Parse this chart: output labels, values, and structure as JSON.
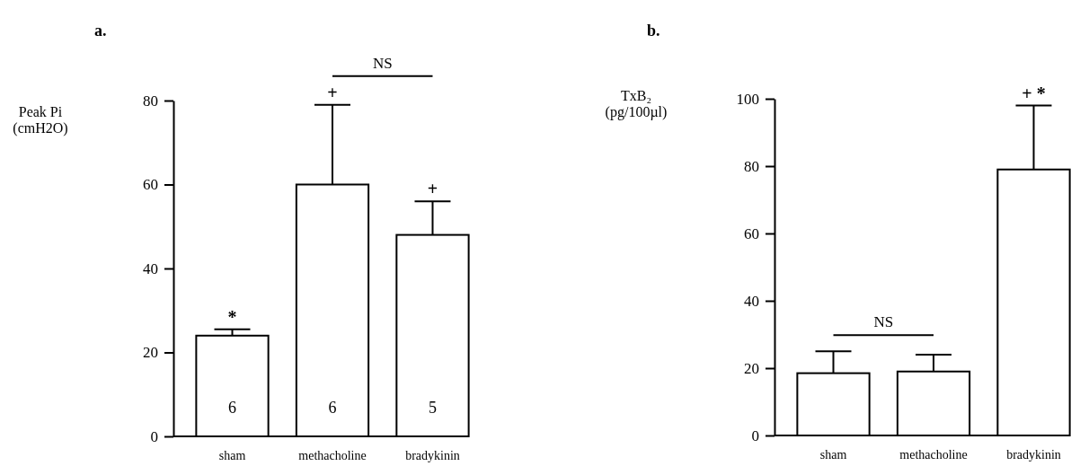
{
  "chart_data": [
    {
      "type": "bar",
      "title": "a.",
      "ylabel": "Peak Pi\n(cmH2O)",
      "categories": [
        "sham",
        "methacholine",
        "bradykinin"
      ],
      "values": [
        24,
        60,
        48
      ],
      "color": "#ffffff",
      "errors": [
        [
          24,
          25.5
        ],
        [
          60,
          79
        ],
        [
          48,
          56
        ]
      ],
      "ylim": [
        0,
        80
      ],
      "yticks": [
        0,
        20,
        40,
        60,
        80
      ],
      "grid": false,
      "annotations": [
        "*",
        "+",
        "+",
        "NS",
        "6",
        "6",
        "5"
      ]
    },
    {
      "type": "bar",
      "title": "b.",
      "ylabel": "TxB₂\n(pg/100µl)",
      "categories": [
        "sham",
        "methacholine",
        "bradykinin"
      ],
      "values": [
        18.5,
        19,
        79
      ],
      "color": "#ffffff",
      "errors": [
        [
          18.5,
          25
        ],
        [
          19,
          24
        ],
        [
          79,
          98
        ]
      ],
      "ylim": [
        0,
        100
      ],
      "yticks": [
        0,
        20,
        40,
        60,
        80,
        100
      ],
      "grid": false,
      "annotations": [
        "NS",
        "+ *"
      ]
    }
  ]
}
